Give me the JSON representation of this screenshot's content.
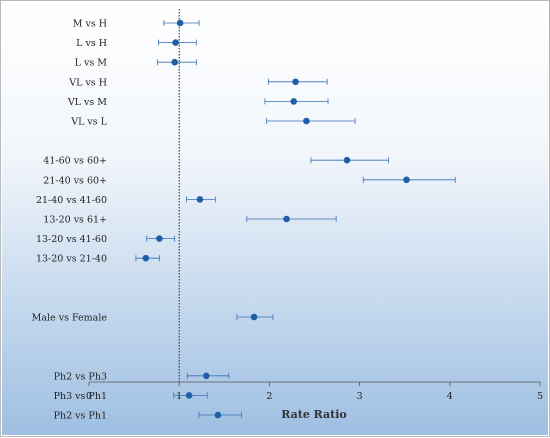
{
  "chart_data": {
    "type": "scatter",
    "subtype": "forest-plot",
    "xlabel": "Rate Ratio",
    "xlim": [
      0,
      5
    ],
    "xticks": [
      0,
      1,
      2,
      3,
      4,
      5
    ],
    "reference_line": 1,
    "reference_line_style": "dotted",
    "grid": false,
    "background": "gradient white-to-blue",
    "colors": {
      "point": "#1f5fa8",
      "errorbar": "#3a6fb5",
      "reference": "#222222",
      "bg_top": "#ffffff",
      "bg_bottom": "#9ebfe2"
    },
    "rows": [
      {
        "label": "M vs H",
        "estimate": 1.01,
        "lower": 0.83,
        "upper": 1.22
      },
      {
        "label": "L vs H",
        "estimate": 0.96,
        "lower": 0.77,
        "upper": 1.19
      },
      {
        "label": "L vs M",
        "estimate": 0.95,
        "lower": 0.76,
        "upper": 1.19
      },
      {
        "label": "VL vs H",
        "estimate": 2.29,
        "lower": 1.99,
        "upper": 2.64
      },
      {
        "label": "VL vs M",
        "estimate": 2.27,
        "lower": 1.95,
        "upper": 2.65
      },
      {
        "label": "VL vs L",
        "estimate": 2.41,
        "lower": 1.97,
        "upper": 2.95
      },
      {
        "label": "",
        "gap": true
      },
      {
        "label": "41-60 vs 60+",
        "estimate": 2.86,
        "lower": 2.46,
        "upper": 3.32
      },
      {
        "label": "21-40 vs 60+",
        "estimate": 3.52,
        "lower": 3.04,
        "upper": 4.06
      },
      {
        "label": "21-40 vs 41-60",
        "estimate": 1.23,
        "lower": 1.08,
        "upper": 1.4
      },
      {
        "label": "13-20 vs 61+",
        "estimate": 2.19,
        "lower": 1.75,
        "upper": 2.74
      },
      {
        "label": "13-20 vs 41-60",
        "estimate": 0.78,
        "lower": 0.64,
        "upper": 0.95
      },
      {
        "label": "13-20 vs 21-40",
        "estimate": 0.63,
        "lower": 0.52,
        "upper": 0.78
      },
      {
        "label": "",
        "gap": true
      },
      {
        "label": "",
        "gap": true
      },
      {
        "label": "Male vs Female",
        "estimate": 1.83,
        "lower": 1.64,
        "upper": 2.04
      },
      {
        "label": "",
        "gap": true
      },
      {
        "label": "",
        "gap": true
      },
      {
        "label": "Ph2 vs Ph3",
        "estimate": 1.3,
        "lower": 1.09,
        "upper": 1.55
      },
      {
        "label": "Ph3 vs Ph1",
        "estimate": 1.11,
        "lower": 0.94,
        "upper": 1.31
      },
      {
        "label": "Ph2 vs Ph1",
        "estimate": 1.43,
        "lower": 1.22,
        "upper": 1.69
      }
    ]
  }
}
